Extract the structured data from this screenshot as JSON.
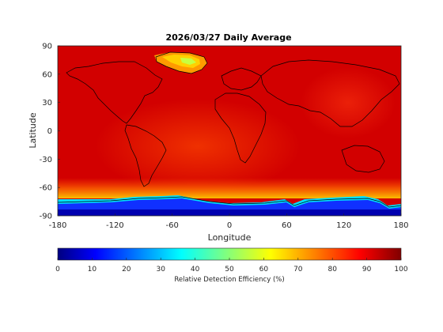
{
  "chart_data": {
    "type": "heatmap",
    "title": "2026/03/27 Daily Average",
    "xlabel": "Longitude",
    "ylabel": "Latitude",
    "xlim": [
      -180,
      180
    ],
    "ylim": [
      -90,
      90
    ],
    "xticks": [
      "-180",
      "-120",
      "-60",
      "0",
      "60",
      "120",
      "180"
    ],
    "yticks": [
      "90",
      "60",
      "30",
      "0",
      "-30",
      "-60",
      "-90"
    ],
    "grid": false,
    "colormap": "jet",
    "background_level_percent": 92,
    "features": [
      {
        "description": "Greenland ice sheet",
        "lon": [
          -55,
          -20
        ],
        "lat": [
          60,
          83
        ],
        "min_percent": 55
      },
      {
        "description": "Antarctic continent",
        "lon": [
          -180,
          180
        ],
        "lat": [
          -90,
          -70
        ],
        "min_percent": 10
      },
      {
        "description": "Southern Ocean transition band",
        "lon": [
          -180,
          180
        ],
        "lat": [
          -72,
          -60
        ],
        "min_percent": 70
      }
    ],
    "colorbar": {
      "label": "Relative Detection Efficiency (%)",
      "range": [
        0,
        100
      ],
      "ticks": [
        "0",
        "10",
        "20",
        "30",
        "40",
        "50",
        "60",
        "70",
        "80",
        "90",
        "100"
      ],
      "orientation": "horizontal",
      "position": "bottom"
    }
  },
  "style": {
    "colors": {
      "jet_dark_blue": "#000080",
      "jet_blue": "#0000ff",
      "jet_cyan": "#00ffff",
      "jet_yellow": "#ffff00",
      "jet_red": "#ff0000",
      "jet_dark_red": "#800000",
      "coastline": "#000000"
    }
  }
}
